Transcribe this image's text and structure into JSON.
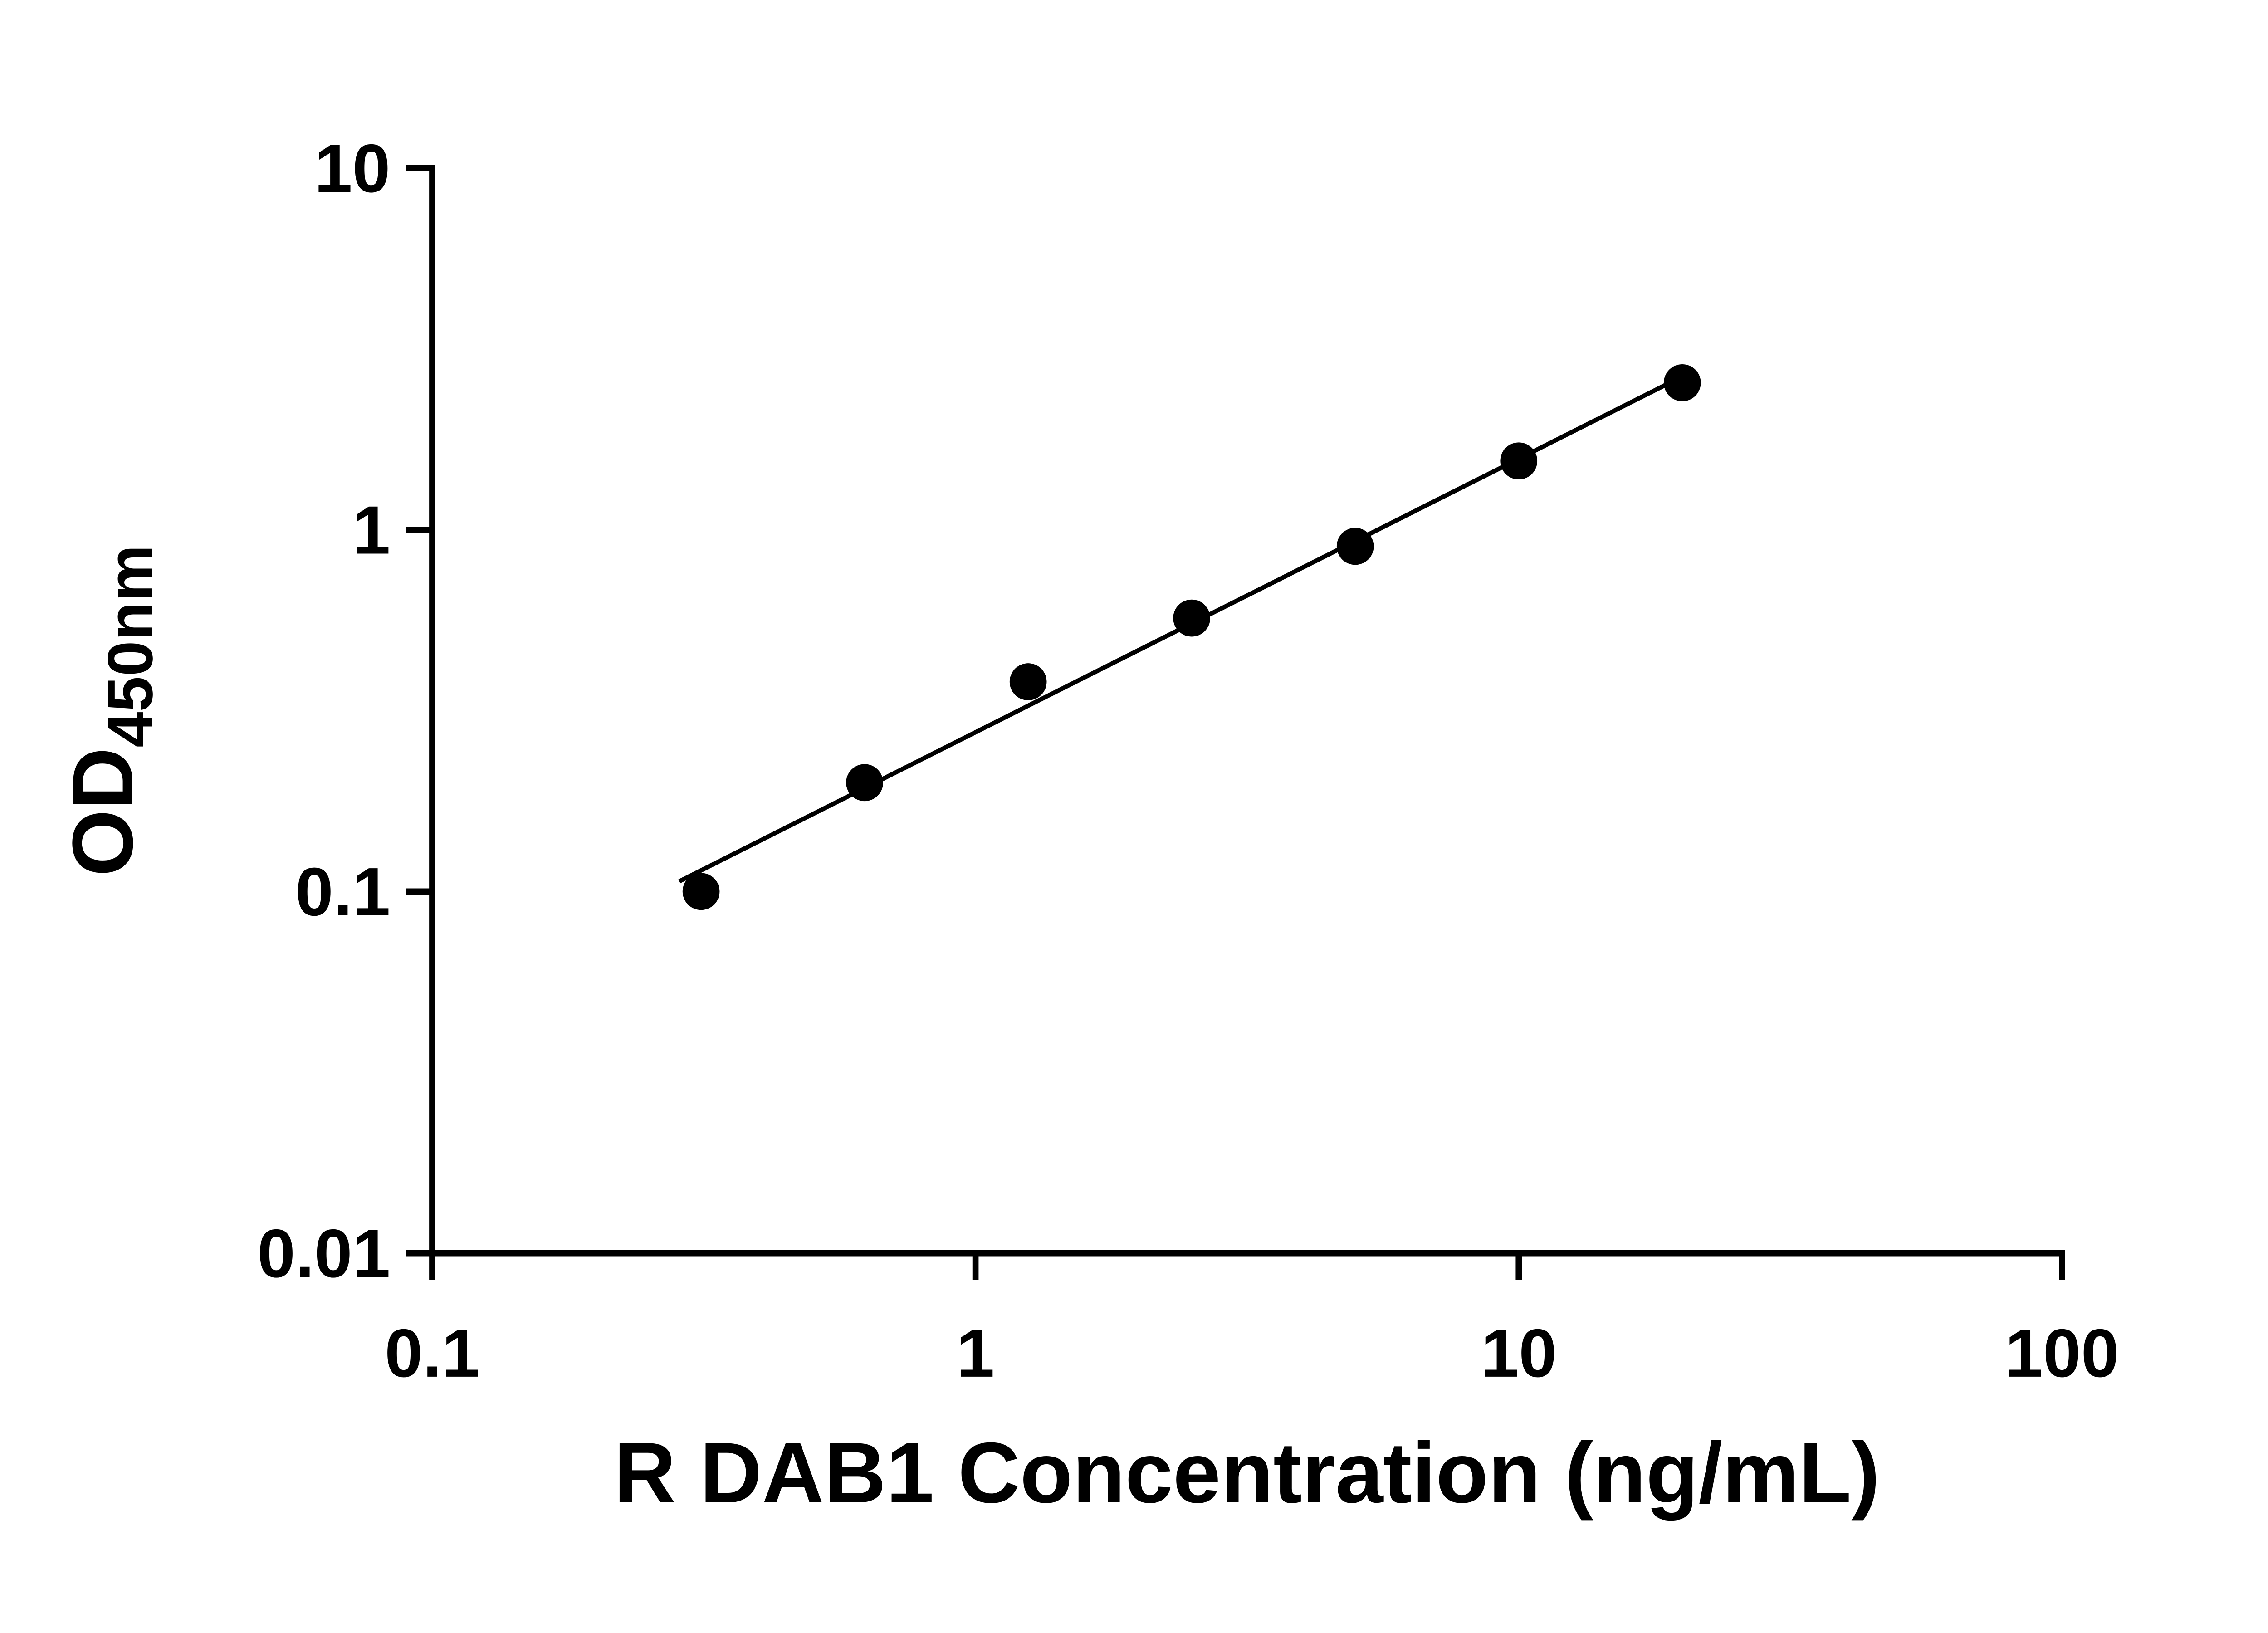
{
  "chart_data": {
    "type": "scatter",
    "title": "",
    "xlabel": "R DAB1 Concentration (ng/mL)",
    "ylabel_main": "OD",
    "ylabel_sub": "450nm",
    "xscale": "log",
    "yscale": "log",
    "xlim": [
      0.1,
      100
    ],
    "ylim": [
      0.01,
      10
    ],
    "x_tick_values": [
      0.1,
      1,
      10,
      100
    ],
    "x_tick_labels": [
      "0.1",
      "1",
      "10",
      "100"
    ],
    "y_tick_values": [
      0.01,
      0.1,
      1,
      10
    ],
    "y_tick_labels": [
      "0.01",
      "0.1",
      "1",
      "10"
    ],
    "points": {
      "x": [
        0.3125,
        0.625,
        1.25,
        2.5,
        5,
        10,
        20
      ],
      "y": [
        0.1,
        0.2,
        0.38,
        0.57,
        0.9,
        1.55,
        2.55
      ]
    },
    "trendline": {
      "type": "linear-loglog-fit",
      "x_start": 0.285,
      "x_end": 20
    },
    "marker_color": "#000000",
    "line_color": "#000000",
    "axis_color": "#000000",
    "grid": false,
    "legend": null
  }
}
